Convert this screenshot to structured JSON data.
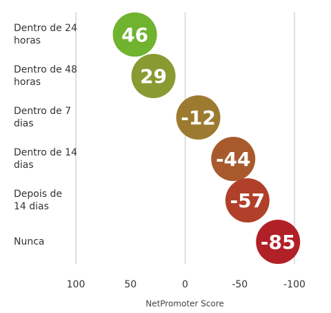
{
  "chart_data": {
    "type": "bubble-strip",
    "categories": [
      "Dentro de 24 horas",
      "Dentro de 48 horas",
      "Dentro de 7 dias",
      "Dentro de 14 dias",
      "Depois de 14 dias",
      "Nunca"
    ],
    "values": [
      46,
      29,
      -12,
      -44,
      -57,
      -85
    ],
    "colors": [
      "#6fb32f",
      "#8a9a32",
      "#9c7a2f",
      "#a85a2d",
      "#b0402a",
      "#b22027"
    ],
    "xlim": [
      100,
      -100
    ],
    "xticks": [
      100,
      50,
      0,
      -50,
      -100
    ],
    "grid_at": [
      100,
      0,
      -100
    ],
    "xlabel": "NetPromoter Score"
  }
}
